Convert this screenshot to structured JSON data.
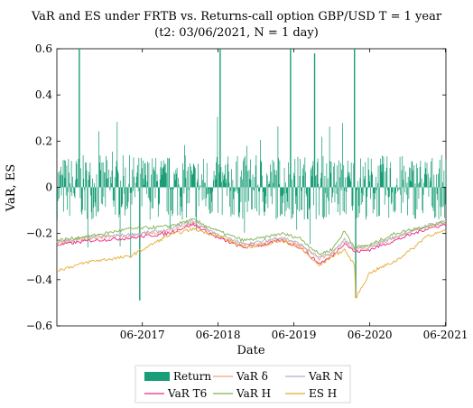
{
  "chart_data": {
    "type": "line",
    "title": "VaR and ES under FRTB vs. Returns-call option GBP/USD T = 1 year",
    "subtitle": "(t2: 03/06/2021, N = 1 day)",
    "xlabel": "Date",
    "ylabel": "VaR, ES",
    "ylim": [
      -0.6,
      0.6
    ],
    "xlim": [
      "2016-04-15",
      "2021-06-03"
    ],
    "y_ticks": [
      "-0.6",
      "-0.4",
      "-0.2",
      "0",
      "0.2",
      "0.4",
      "0.6"
    ],
    "x_ticks": [
      "06-2017",
      "06-2018",
      "06-2019",
      "06-2020",
      "06-2021"
    ],
    "legend_position": "bottom",
    "colors": {
      "return": "#1a9e77",
      "var_delta": "#f4a582",
      "var_n": "#b0b0c8",
      "var_t6": "#e7298a",
      "var_h": "#7fb24d",
      "es_h": "#e6ab2e"
    },
    "series": [
      {
        "name": "Return",
        "style": "bar",
        "color_key": "return",
        "description_points": [
          [
            "2016-04-15",
            0.0
          ],
          [
            "2016-08-01",
            0.6
          ],
          [
            "2017-05-20",
            -0.49
          ],
          [
            "2018-06-10",
            0.6
          ],
          [
            "2019-05-15",
            0.6
          ],
          [
            "2019-09-10",
            0.58
          ],
          [
            "2020-03-20",
            0.6
          ],
          [
            "2020-03-25",
            -0.48
          ],
          [
            "2021-06-03",
            0.0
          ]
        ]
      },
      {
        "name": "VaR δ",
        "color_key": "var_delta",
        "x": [
          "2016-04-15",
          "2016-10-01",
          "2017-04-01",
          "2017-10-01",
          "2018-02-01",
          "2018-06-01",
          "2018-10-01",
          "2019-01-01",
          "2019-04-01",
          "2019-07-01",
          "2019-10-01",
          "2019-12-01",
          "2020-02-01",
          "2020-03-20",
          "2020-06-01",
          "2020-10-01",
          "2021-01-01",
          "2021-03-01",
          "2021-06-03"
        ],
        "y": [
          -0.24,
          -0.22,
          -0.21,
          -0.19,
          -0.15,
          -0.21,
          -0.25,
          -0.24,
          -0.22,
          -0.25,
          -0.31,
          -0.29,
          -0.23,
          -0.27,
          -0.26,
          -0.22,
          -0.19,
          -0.17,
          -0.15
        ]
      },
      {
        "name": "VaR N",
        "color_key": "var_n",
        "x": [
          "2016-04-15",
          "2016-10-01",
          "2017-04-01",
          "2017-10-01",
          "2018-02-01",
          "2018-06-01",
          "2018-10-01",
          "2019-01-01",
          "2019-04-01",
          "2019-07-01",
          "2019-10-01",
          "2019-12-01",
          "2020-02-01",
          "2020-03-20",
          "2020-06-01",
          "2020-10-01",
          "2021-01-01",
          "2021-03-01",
          "2021-06-03"
        ],
        "y": [
          -0.235,
          -0.215,
          -0.205,
          -0.185,
          -0.145,
          -0.205,
          -0.245,
          -0.235,
          -0.215,
          -0.245,
          -0.305,
          -0.285,
          -0.225,
          -0.265,
          -0.255,
          -0.215,
          -0.185,
          -0.165,
          -0.145
        ]
      },
      {
        "name": "VaR T6",
        "color_key": "var_t6",
        "x": [
          "2016-04-15",
          "2016-10-01",
          "2017-04-01",
          "2017-10-01",
          "2018-02-01",
          "2018-06-01",
          "2018-10-01",
          "2019-01-01",
          "2019-04-01",
          "2019-07-01",
          "2019-10-01",
          "2019-12-01",
          "2020-02-01",
          "2020-03-20",
          "2020-06-01",
          "2020-10-01",
          "2021-01-01",
          "2021-03-01",
          "2021-06-03"
        ],
        "y": [
          -0.25,
          -0.23,
          -0.22,
          -0.2,
          -0.16,
          -0.22,
          -0.26,
          -0.25,
          -0.23,
          -0.26,
          -0.33,
          -0.3,
          -0.24,
          -0.28,
          -0.27,
          -0.23,
          -0.2,
          -0.18,
          -0.16
        ]
      },
      {
        "name": "VaR H",
        "color_key": "var_h",
        "x": [
          "2016-04-15",
          "2016-10-01",
          "2017-04-01",
          "2017-10-01",
          "2018-02-01",
          "2018-06-01",
          "2018-10-01",
          "2019-01-01",
          "2019-04-01",
          "2019-07-01",
          "2019-10-01",
          "2019-12-01",
          "2020-02-01",
          "2020-03-20",
          "2020-06-01",
          "2020-10-01",
          "2021-01-01",
          "2021-03-01",
          "2021-06-03"
        ],
        "y": [
          -0.23,
          -0.21,
          -0.18,
          -0.17,
          -0.14,
          -0.19,
          -0.23,
          -0.22,
          -0.2,
          -0.22,
          -0.29,
          -0.27,
          -0.19,
          -0.26,
          -0.25,
          -0.2,
          -0.18,
          -0.17,
          -0.15
        ]
      },
      {
        "name": "ES H",
        "color_key": "es_h",
        "x": [
          "2016-04-15",
          "2016-10-01",
          "2017-04-01",
          "2017-10-01",
          "2018-02-01",
          "2018-06-01",
          "2018-10-01",
          "2019-01-01",
          "2019-04-01",
          "2019-07-01",
          "2019-10-01",
          "2019-12-01",
          "2020-02-01",
          "2020-03-20",
          "2020-03-25",
          "2020-06-01",
          "2020-10-01",
          "2021-01-01",
          "2021-03-01",
          "2021-06-03"
        ],
        "y": [
          -0.36,
          -0.32,
          -0.3,
          -0.21,
          -0.18,
          -0.21,
          -0.26,
          -0.25,
          -0.23,
          -0.26,
          -0.34,
          -0.3,
          -0.27,
          -0.34,
          -0.48,
          -0.37,
          -0.32,
          -0.26,
          -0.21,
          -0.19
        ]
      }
    ]
  },
  "legend": {
    "items": [
      {
        "label": "Return",
        "color_key": "return",
        "kind": "bar"
      },
      {
        "label": "VaR δ",
        "color_key": "var_delta",
        "kind": "line"
      },
      {
        "label": "VaR N",
        "color_key": "var_n",
        "kind": "line"
      },
      {
        "label": "VaR T6",
        "color_key": "var_t6",
        "kind": "line"
      },
      {
        "label": "VaR H",
        "color_key": "var_h",
        "kind": "line"
      },
      {
        "label": "ES H",
        "color_key": "es_h",
        "kind": "line"
      }
    ]
  }
}
